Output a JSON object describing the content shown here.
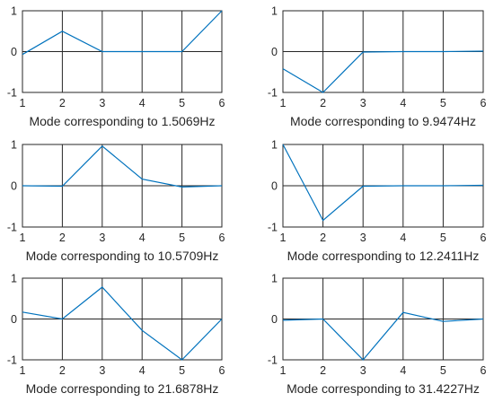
{
  "line_color": "#0072BD",
  "chart_data": [
    {
      "type": "line",
      "x": [
        1,
        2,
        3,
        4,
        5,
        6
      ],
      "values": [
        -0.07,
        0.5,
        0,
        0,
        0,
        1
      ],
      "xlabel": "Mode corresponding to 1.5069Hz",
      "xlim": [
        1,
        6
      ],
      "ylim": [
        -1,
        1
      ],
      "xticks": [
        "1",
        "2",
        "3",
        "4",
        "5",
        "6"
      ],
      "yticks": [
        "-1",
        "0",
        "1"
      ],
      "grid": true
    },
    {
      "type": "line",
      "x": [
        1,
        2,
        3,
        4,
        5,
        6
      ],
      "values": [
        -0.42,
        -1,
        -0.01,
        0,
        0,
        0.01
      ],
      "xlabel": "Mode corresponding to 9.9474Hz",
      "xlim": [
        1,
        6
      ],
      "ylim": [
        -1,
        1
      ],
      "xticks": [
        "1",
        "2",
        "3",
        "4",
        "5",
        "6"
      ],
      "yticks": [
        "-1",
        "0",
        "1"
      ],
      "grid": true
    },
    {
      "type": "line",
      "x": [
        1,
        2,
        3,
        4,
        5,
        6
      ],
      "values": [
        0,
        -0.01,
        0.96,
        0.16,
        -0.03,
        0
      ],
      "xlabel": "Mode corresponding to 10.5709Hz",
      "xlim": [
        1,
        6
      ],
      "ylim": [
        -1,
        1
      ],
      "xticks": [
        "1",
        "2",
        "3",
        "4",
        "5",
        "6"
      ],
      "yticks": [
        "-1",
        "0",
        "1"
      ],
      "grid": true
    },
    {
      "type": "line",
      "x": [
        1,
        2,
        3,
        4,
        5,
        6
      ],
      "values": [
        1,
        -0.84,
        -0.01,
        0,
        0,
        0.01
      ],
      "xlabel": "Mode corresponding to 12.2411Hz",
      "xlim": [
        1,
        6
      ],
      "ylim": [
        -1,
        1
      ],
      "xticks": [
        "1",
        "2",
        "3",
        "4",
        "5",
        "6"
      ],
      "yticks": [
        "-1",
        "0",
        "1"
      ],
      "grid": true
    },
    {
      "type": "line",
      "x": [
        1,
        2,
        3,
        4,
        5,
        6
      ],
      "values": [
        0.17,
        0,
        0.78,
        -0.28,
        -1,
        0
      ],
      "xlabel": "Mode corresponding to 21.6878Hz",
      "xlim": [
        1,
        6
      ],
      "ylim": [
        -1,
        1
      ],
      "xticks": [
        "1",
        "2",
        "3",
        "4",
        "5",
        "6"
      ],
      "yticks": [
        "-1",
        "0",
        "1"
      ],
      "grid": true
    },
    {
      "type": "line",
      "x": [
        1,
        2,
        3,
        4,
        5,
        6
      ],
      "values": [
        -0.03,
        0,
        -1,
        0.16,
        -0.06,
        0
      ],
      "xlabel": "Mode corresponding to 31.4227Hz",
      "xlim": [
        1,
        6
      ],
      "ylim": [
        -1,
        1
      ],
      "xticks": [
        "1",
        "2",
        "3",
        "4",
        "5",
        "6"
      ],
      "yticks": [
        "-1",
        "0",
        "1"
      ],
      "grid": true
    }
  ]
}
